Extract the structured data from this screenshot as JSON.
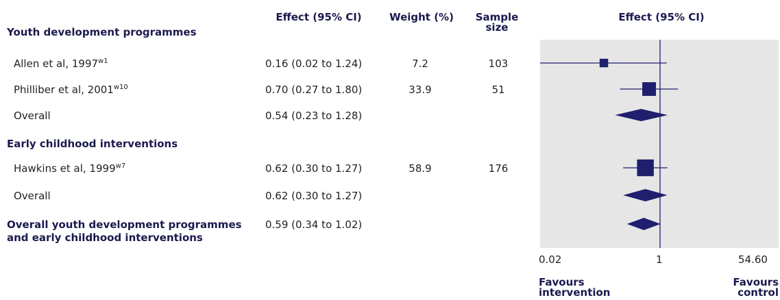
{
  "headers": {
    "effect": "Effect (95% CI)",
    "weight": "Weight (%)",
    "sample_line1": "Sample",
    "sample_line2": "size",
    "plot": "Effect (95% CI)"
  },
  "sections": {
    "youth": "Youth development programmes",
    "early": "Early childhood interventions",
    "overall_line1": "Overall youth development programmes",
    "overall_line2": "and early childhood interventions"
  },
  "rows": [
    {
      "label": "Allen et al, 1997",
      "ref": "w1",
      "effect": "0.16 (0.02 to 1.24)",
      "weight": "7.2",
      "n": "103"
    },
    {
      "label": "Philliber et al, 2001",
      "ref": "w10",
      "effect": "0.70 (0.27 to 1.80)",
      "weight": "33.9",
      "n": "51"
    },
    {
      "label": "Overall",
      "effect": "0.54 (0.23 to 1.28)"
    },
    {
      "label": "Hawkins et al, 1999",
      "ref": "w7",
      "effect": "0.62 (0.30 to 1.27)",
      "weight": "58.9",
      "n": "176"
    },
    {
      "label": "Overall",
      "effect": "0.62 (0.30 to 1.27)"
    },
    {
      "effect": "0.59 (0.34 to 1.02)"
    }
  ],
  "axis": {
    "ticks": [
      "0.02",
      "1",
      "54.60"
    ],
    "favours_left_1": "Favours",
    "favours_left_2": "intervention",
    "favours_right_1": "Favours",
    "favours_right_2": "control"
  },
  "chart_data": {
    "type": "forest",
    "scale": "log",
    "xlim": [
      0.02,
      54.6
    ],
    "reference_line": 1,
    "colors": {
      "marker": "#1f1f6e",
      "panel": "#e6e6e6"
    },
    "studies": [
      {
        "name": "Allen et al, 1997",
        "estimate": 0.16,
        "lower": 0.02,
        "upper": 1.24,
        "weight": 7.2,
        "kind": "study"
      },
      {
        "name": "Philliber et al, 2001",
        "estimate": 0.7,
        "lower": 0.27,
        "upper": 1.8,
        "weight": 33.9,
        "kind": "study"
      },
      {
        "name": "Overall",
        "estimate": 0.54,
        "lower": 0.23,
        "upper": 1.28,
        "kind": "summary"
      },
      {
        "name": "Hawkins et al, 1999",
        "estimate": 0.62,
        "lower": 0.3,
        "upper": 1.27,
        "weight": 58.9,
        "kind": "study"
      },
      {
        "name": "Overall",
        "estimate": 0.62,
        "lower": 0.3,
        "upper": 1.27,
        "kind": "summary"
      },
      {
        "name": "Overall youth development programmes and early childhood interventions",
        "estimate": 0.59,
        "lower": 0.34,
        "upper": 1.02,
        "kind": "summary"
      }
    ]
  }
}
